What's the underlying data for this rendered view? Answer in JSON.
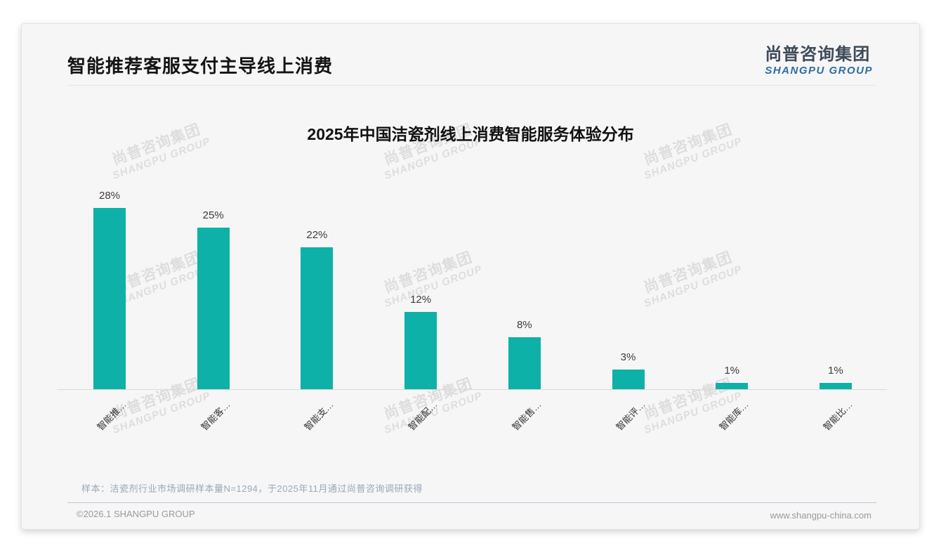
{
  "page": {
    "title": "智能推荐客服支付主导线上消费",
    "logo": {
      "cn": "尚普咨询集团",
      "en": "SHANGPU GROUP"
    },
    "watermark": {
      "cn": "尚普咨询集团",
      "en": "SHANGPU GROUP"
    },
    "footer": {
      "note": "样本：洁瓷剂行业市场调研样本量N=1294，于2025年11月通过尚普咨询调研获得",
      "copyright": "©2026.1 SHANGPU GROUP",
      "website": "www.shangpu-china.com"
    }
  },
  "chart_data": {
    "type": "bar",
    "title": "2025年中国洁瓷剂线上消费智能服务体验分布",
    "categories": [
      "智能推…",
      "智能客…",
      "智能支…",
      "智能配…",
      "智能售…",
      "智能评…",
      "智能库…",
      "智能比…"
    ],
    "values": [
      28,
      25,
      22,
      12,
      8,
      3,
      1,
      1
    ],
    "data_labels": [
      "28%",
      "25%",
      "22%",
      "12%",
      "8%",
      "3%",
      "1%",
      "1%"
    ],
    "unit": "%",
    "bar_color": "#0db1a7",
    "label_color": "#3d3d3d",
    "ylim": [
      0,
      30
    ],
    "grid": false,
    "legend": "none"
  }
}
